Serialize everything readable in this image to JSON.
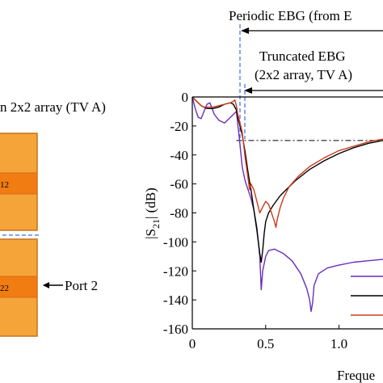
{
  "figure": {
    "left_title": "n 2x2 array (TV A)",
    "port_label": "Port 2",
    "cell_top_label": "12",
    "cell_bottom_label": "22",
    "periodic_label": "Periodic EBG (from E",
    "truncated_line1": "Truncated EBG",
    "truncated_line2": "(2x2 array, TV A)",
    "xlabel_visible": "Freque",
    "colors": {
      "orange_light": "#f5a43a",
      "orange_dark": "#f07c12",
      "board_edge": "#c8721a",
      "purple": "#6a2dbd",
      "black": "#000000",
      "red": "#cc3b1a",
      "dash_blue": "#3b6fd6"
    }
  },
  "chart_data": {
    "type": "line",
    "ylabel": "|S21| (dB)",
    "xlabel": "Freque",
    "xlim": [
      0,
      1.3
    ],
    "ylim": [
      -160,
      0
    ],
    "yticks": [
      0,
      -20,
      -40,
      -60,
      -80,
      -100,
      -120,
      -140,
      -160
    ],
    "ytick_labels": [
      "0",
      "-20",
      "-40",
      "-60",
      "-80",
      "-100",
      "-120",
      "-140",
      "-160"
    ],
    "xticks": [
      0,
      0.5,
      1.0
    ],
    "xtick_labels": [
      "0",
      "0.5",
      "1.0"
    ],
    "reference_line_y": -30,
    "series": [
      {
        "color": "#6a2dbd",
        "x": [
          0,
          0.02,
          0.04,
          0.06,
          0.08,
          0.1,
          0.12,
          0.15,
          0.18,
          0.22,
          0.26,
          0.3,
          0.32,
          0.34,
          0.36,
          0.38,
          0.4,
          0.42,
          0.44,
          0.46,
          0.47,
          0.48,
          0.5,
          0.52,
          0.56,
          0.62,
          0.68,
          0.74,
          0.78,
          0.8,
          0.81,
          0.82,
          0.83,
          0.86,
          0.92,
          1.0,
          1.1,
          1.2,
          1.3
        ],
        "y": [
          0,
          -8,
          -14,
          -15,
          -10,
          -5,
          -4,
          -12,
          -16,
          -18,
          -14,
          -10,
          -28,
          -48,
          -58,
          -64,
          -70,
          -78,
          -90,
          -110,
          -133,
          -120,
          -110,
          -106,
          -105,
          -108,
          -113,
          -122,
          -132,
          -140,
          -148,
          -142,
          -130,
          -122,
          -118,
          -116,
          -114,
          -113,
          -112
        ]
      },
      {
        "color": "#000000",
        "x": [
          0,
          0.02,
          0.04,
          0.06,
          0.08,
          0.1,
          0.14,
          0.18,
          0.22,
          0.26,
          0.28,
          0.3,
          0.31,
          0.32,
          0.34,
          0.36,
          0.38,
          0.4,
          0.42,
          0.44,
          0.46,
          0.47,
          0.48,
          0.49,
          0.5,
          0.52,
          0.55,
          0.6,
          0.7,
          0.8,
          0.9,
          1.0,
          1.1,
          1.2,
          1.3
        ],
        "y": [
          0,
          -2,
          -4,
          -6,
          -7,
          -8,
          -8,
          -7,
          -5,
          -4,
          -5,
          -9,
          -14,
          -18,
          -26,
          -38,
          -52,
          -64,
          -78,
          -92,
          -108,
          -114,
          -106,
          -94,
          -86,
          -80,
          -75,
          -68,
          -58,
          -50,
          -44,
          -39,
          -35,
          -32,
          -30
        ]
      },
      {
        "color": "#cc3b1a",
        "x": [
          0,
          0.02,
          0.04,
          0.06,
          0.08,
          0.1,
          0.14,
          0.18,
          0.22,
          0.26,
          0.28,
          0.29,
          0.3,
          0.31,
          0.32,
          0.34,
          0.36,
          0.38,
          0.39,
          0.4,
          0.42,
          0.44,
          0.46,
          0.48,
          0.5,
          0.52,
          0.54,
          0.56,
          0.57,
          0.58,
          0.6,
          0.62,
          0.66,
          0.72,
          0.8,
          0.9,
          1.0,
          1.1,
          1.2,
          1.3
        ],
        "y": [
          0,
          -2,
          -4,
          -6,
          -7,
          -7,
          -7,
          -6,
          -5,
          -4,
          -3,
          -2,
          -6,
          -12,
          -16,
          -24,
          -42,
          -56,
          -64,
          -60,
          -64,
          -72,
          -80,
          -76,
          -72,
          -74,
          -80,
          -86,
          -90,
          -84,
          -76,
          -70,
          -62,
          -55,
          -48,
          -42,
          -37,
          -34,
          -31,
          -29
        ]
      }
    ]
  }
}
